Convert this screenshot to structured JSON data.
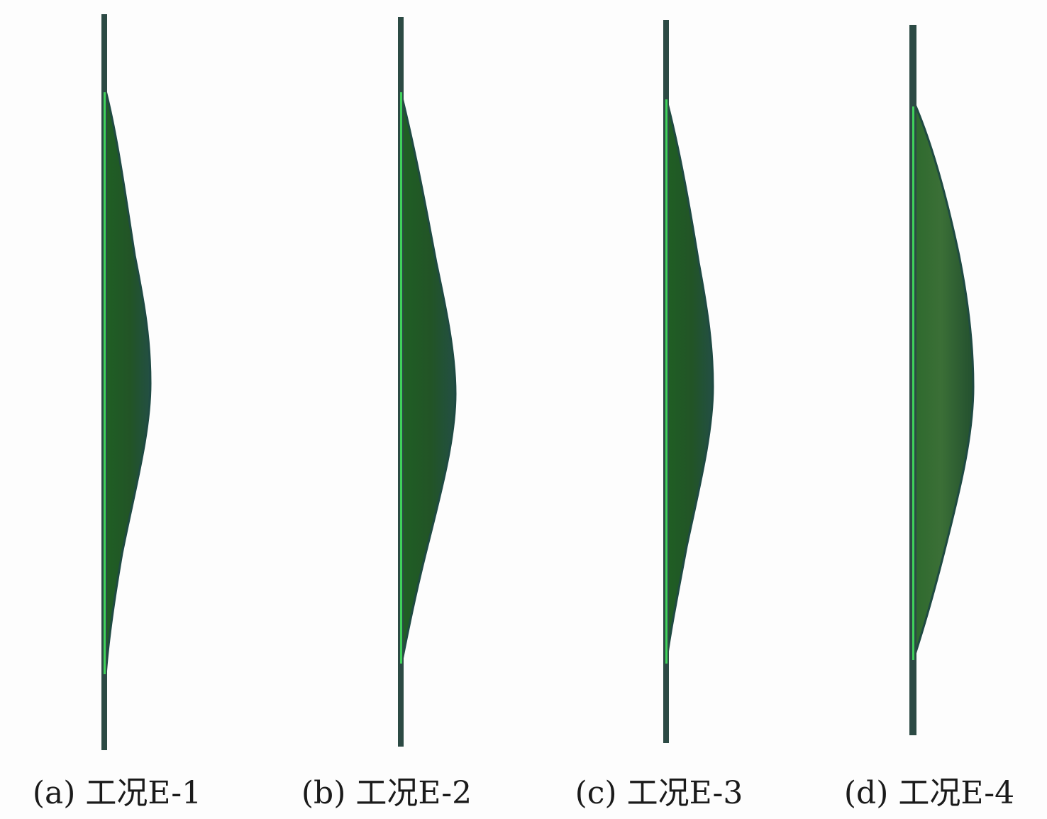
{
  "panels": [
    {
      "caption": "(a) 工况E-1"
    },
    {
      "caption": "(b) 工况E-2"
    },
    {
      "caption": "(c) 工况E-3"
    },
    {
      "caption": "(d) 工况E-4"
    }
  ],
  "colors": {
    "rod": "#2c4a44",
    "rod_highlight": "#3fd25a",
    "bulge_fill": "#215a24",
    "bulge_edge": "#1f4a42",
    "background": "#fdfdfd"
  }
}
